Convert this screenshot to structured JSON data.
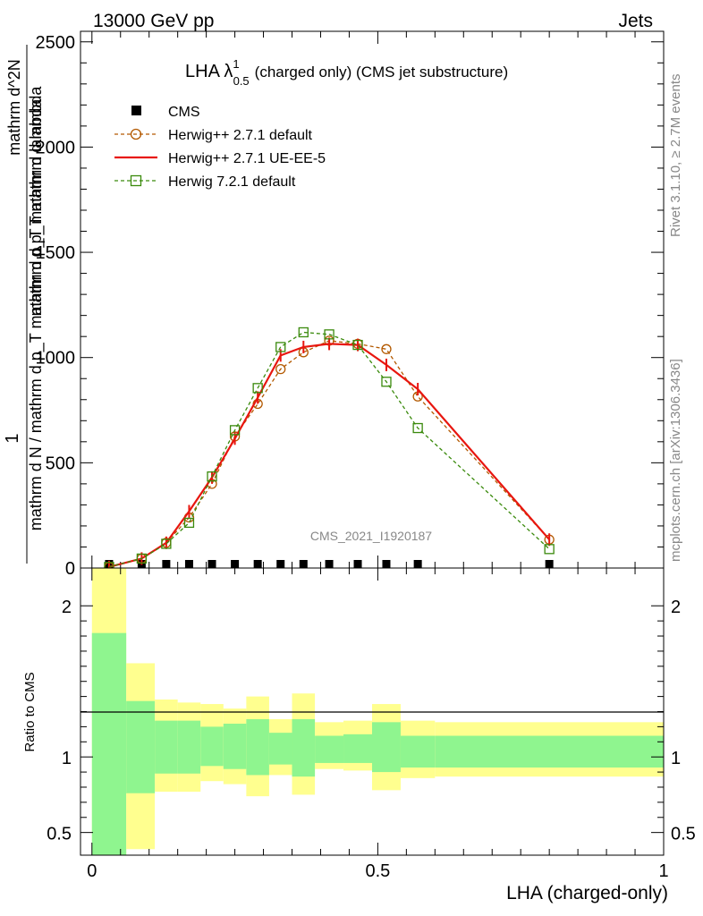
{
  "header": {
    "left": "13000 GeV pp",
    "right": "Jets"
  },
  "chart_data": [
    {
      "type": "line",
      "panel": "main",
      "title_main": "LHA λ",
      "title_sup": "1",
      "title_sub": "0.5",
      "title_rest": "(charged only) (CMS jet substructure)",
      "ylabel_numer": "1",
      "ylabel_denom": "mathrm d N / mathrm d p_T mathrm d p_T mathrm d lambda",
      "ylabel_frac_numer": "mathrm d^2N",
      "ylabel_frac_denom": "mathrm d p_T mathrm d lambda",
      "ylim": [
        0,
        2550
      ],
      "yticks": [
        0,
        500,
        1000,
        1500,
        2000,
        2500
      ],
      "ytick_labels": [
        "0",
        "500",
        "1000",
        "1500",
        "2000",
        "2500"
      ],
      "xlim": [
        -0.02,
        1.0
      ],
      "watermark": "CMS_2021_I1920187",
      "right_side_label": "Rivet 3.1.10, ≥ 2.7M events",
      "right_side_label2": "mcplots.cern.ch [arXiv:1306.3436]",
      "legend_position": "top-left",
      "series": [
        {
          "name": "CMS",
          "style": "data",
          "color": "#000000",
          "x": [
            0.03,
            0.087,
            0.13,
            0.17,
            0.21,
            0.25,
            0.29,
            0.33,
            0.37,
            0.415,
            0.465,
            0.515,
            0.57,
            0.8
          ],
          "values": [
            0,
            0,
            0,
            0,
            0,
            0,
            0,
            0,
            0,
            0,
            0,
            0,
            0,
            0
          ]
        },
        {
          "name": "Herwig++ 2.7.1 default",
          "style": "circle-dashed",
          "color": "#b35900",
          "x": [
            0.03,
            0.087,
            0.13,
            0.17,
            0.21,
            0.25,
            0.29,
            0.33,
            0.37,
            0.415,
            0.465,
            0.515,
            0.57,
            0.8
          ],
          "values": [
            5,
            45,
            120,
            240,
            400,
            625,
            780,
            945,
            1025,
            1080,
            1065,
            1040,
            815,
            135
          ]
        },
        {
          "name": "Herwig++ 2.7.1 UE-EE-5",
          "style": "solid",
          "color": "#e8160f",
          "x": [
            0.03,
            0.087,
            0.13,
            0.17,
            0.21,
            0.25,
            0.29,
            0.33,
            0.37,
            0.415,
            0.465,
            0.515,
            0.57,
            0.8
          ],
          "values": [
            5,
            45,
            120,
            270,
            430,
            615,
            810,
            1010,
            1050,
            1065,
            1060,
            965,
            850,
            135
          ]
        },
        {
          "name": "Herwig 7.2.1 default",
          "style": "square-dashed",
          "color": "#3a8a0c",
          "x": [
            0.03,
            0.087,
            0.13,
            0.17,
            0.21,
            0.25,
            0.29,
            0.33,
            0.37,
            0.415,
            0.465,
            0.515,
            0.57,
            0.8
          ],
          "values": [
            5,
            45,
            115,
            215,
            435,
            655,
            855,
            1050,
            1120,
            1110,
            1060,
            885,
            665,
            90
          ]
        }
      ]
    },
    {
      "type": "area",
      "panel": "ratio",
      "ylabel": "Ratio to CMS",
      "xlabel": "LHA (charged-only)",
      "ylim": [
        0.35,
        2.25
      ],
      "yticks": [
        0.5,
        1,
        2
      ],
      "ytick_labels": [
        "0.5",
        "1",
        "2"
      ],
      "xticks": [
        0,
        0.5,
        1
      ],
      "xtick_labels": [
        "0",
        "0.5",
        "1"
      ],
      "xlim": [
        -0.02,
        1.0
      ],
      "bin_edges": [
        0.0,
        0.06,
        0.11,
        0.15,
        0.19,
        0.23,
        0.27,
        0.31,
        0.35,
        0.39,
        0.44,
        0.49,
        0.54,
        0.6,
        1.0
      ],
      "band_yellow_color": "#ffff8f",
      "band_green_color": "#8ff58f",
      "yellow_upper": [
        2.3,
        1.62,
        1.38,
        1.36,
        1.35,
        1.32,
        1.4,
        1.25,
        1.42,
        1.23,
        1.24,
        1.35,
        1.24,
        1.23
      ],
      "yellow_lower": [
        0.3,
        0.39,
        0.77,
        0.77,
        0.84,
        0.82,
        0.74,
        0.88,
        0.75,
        0.92,
        0.91,
        0.78,
        0.86,
        0.87
      ],
      "green_upper": [
        1.82,
        1.37,
        1.24,
        1.24,
        1.2,
        1.22,
        1.25,
        1.16,
        1.25,
        1.14,
        1.15,
        1.23,
        1.14,
        1.14
      ],
      "green_lower": [
        0.3,
        0.76,
        0.89,
        0.89,
        0.94,
        0.92,
        0.88,
        0.95,
        0.87,
        0.96,
        0.96,
        0.9,
        0.93,
        0.93
      ]
    }
  ]
}
